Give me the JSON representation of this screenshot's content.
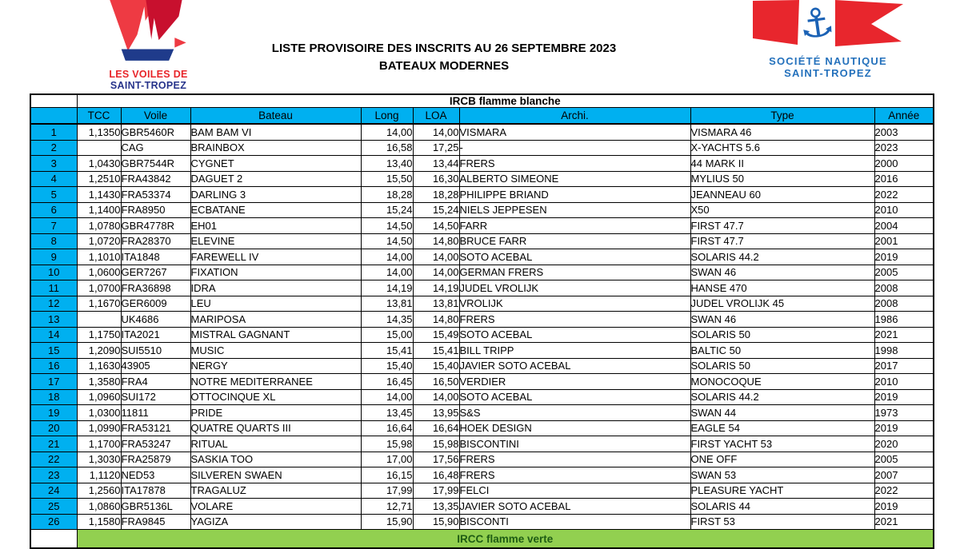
{
  "header": {
    "title_line1": "LISTE PROVISOIRE DES INSCRITS AU 26 SEPTEMBRE 2023",
    "title_line2": "BATEAUX MODERNES",
    "left_logo": {
      "line1": "LES VOILES DE",
      "line2": "SAINT-TROPEZ"
    },
    "right_logo": {
      "line1": "SOCIÉTÉ NAUTIQUE",
      "line2": "SAINT-TROPEZ"
    }
  },
  "colors": {
    "header_blue": "#00B0F0",
    "section_green": "#92D050",
    "logo_red": "#EE3A43",
    "logo_dark_red": "#C8102E",
    "logo_navy": "#1F3B8B",
    "logo_blue_text": "#2471BC",
    "green_text": "#1E5C14"
  },
  "table": {
    "section_title": "IRCB flamme blanche",
    "footer_section_title": "IRCC flamme verte",
    "columns": [
      "TCC",
      "Voile",
      "Bateau",
      "Long",
      "LOA",
      "Archi.",
      "Type",
      "Année"
    ],
    "rows": [
      {
        "num": "1",
        "tcc": "1,1350",
        "voile": "GBR5460R",
        "bateau": "BAM BAM VI",
        "long": "14,00",
        "loa": "14,00",
        "archi": "VISMARA",
        "type": "VISMARA 46",
        "annee": "2003"
      },
      {
        "num": "2",
        "tcc": "",
        "voile": "CAG",
        "bateau": "BRAINBOX",
        "long": "16,58",
        "loa": "17,25",
        "archi": "-",
        "type": "X-YACHTS 5.6",
        "annee": "2023"
      },
      {
        "num": "3",
        "tcc": "1,0430",
        "voile": "GBR7544R",
        "bateau": "CYGNET",
        "long": "13,40",
        "loa": "13,44",
        "archi": "FRERS",
        "type": "44 MARK II",
        "annee": "2000"
      },
      {
        "num": "4",
        "tcc": "1,2510",
        "voile": "FRA43842",
        "bateau": "DAGUET 2",
        "long": "15,50",
        "loa": "16,30",
        "archi": "ALBERTO SIMEONE",
        "type": "MYLIUS 50",
        "annee": "2016"
      },
      {
        "num": "5",
        "tcc": "1,1430",
        "voile": "FRA53374",
        "bateau": "DARLING 3",
        "long": "18,28",
        "loa": "18,28",
        "archi": "PHILIPPE BRIAND",
        "type": "JEANNEAU 60",
        "annee": "2022"
      },
      {
        "num": "6",
        "tcc": "1,1400",
        "voile": "FRA8950",
        "bateau": "ECBATANE",
        "long": "15,24",
        "loa": "15,24",
        "archi": "NIELS JEPPESEN",
        "type": "X50",
        "annee": "2010"
      },
      {
        "num": "7",
        "tcc": "1,0780",
        "voile": "GBR4778R",
        "bateau": "EH01",
        "long": "14,50",
        "loa": "14,50",
        "archi": "FARR",
        "type": "FIRST 47.7",
        "annee": "2004"
      },
      {
        "num": "8",
        "tcc": "1,0720",
        "voile": "FRA28370",
        "bateau": "ELEVINE",
        "long": "14,50",
        "loa": "14,80",
        "archi": "BRUCE FARR",
        "type": "FIRST 47.7",
        "annee": "2001"
      },
      {
        "num": "9",
        "tcc": "1,1010",
        "voile": "ITA1848",
        "bateau": "FAREWELL IV",
        "long": "14,00",
        "loa": "14,00",
        "archi": "SOTO ACEBAL",
        "type": "SOLARIS 44.2",
        "annee": "2019"
      },
      {
        "num": "10",
        "tcc": "1,0600",
        "voile": "GER7267",
        "bateau": "FIXATION",
        "long": "14,00",
        "loa": "14,00",
        "archi": "GERMAN FRERS",
        "type": "SWAN 46",
        "annee": "2005"
      },
      {
        "num": "11",
        "tcc": "1,0700",
        "voile": "FRA36898",
        "bateau": "IDRA",
        "long": "14,19",
        "loa": "14,19",
        "archi": "JUDEL VROLIJK",
        "type": "HANSE 470",
        "annee": "2008"
      },
      {
        "num": "12",
        "tcc": "1,1670",
        "voile": "GER6009",
        "bateau": "LEU",
        "long": "13,81",
        "loa": "13,81",
        "archi": "VROLIJK",
        "type": "JUDEL VROLIJK 45",
        "annee": "2008"
      },
      {
        "num": "13",
        "tcc": "",
        "voile": "UK4686",
        "bateau": "MARIPOSA",
        "long": "14,35",
        "loa": "14,80",
        "archi": "FRERS",
        "type": "SWAN 46",
        "annee": "1986"
      },
      {
        "num": "14",
        "tcc": "1,1750",
        "voile": "ITA2021",
        "bateau": "MISTRAL GAGNANT",
        "long": "15,00",
        "loa": "15,49",
        "archi": "SOTO ACEBAL",
        "type": "SOLARIS 50",
        "annee": "2021"
      },
      {
        "num": "15",
        "tcc": "1,2090",
        "voile": "SUI5510",
        "bateau": "MUSIC",
        "long": "15,41",
        "loa": "15,41",
        "archi": "BILL TRIPP",
        "type": "BALTIC 50",
        "annee": "1998"
      },
      {
        "num": "16",
        "tcc": "1,1630",
        "voile": "43905",
        "bateau": "NERGY",
        "long": "15,40",
        "loa": "15,40",
        "archi": "JAVIER SOTO ACEBAL",
        "type": "SOLARIS 50",
        "annee": "2017"
      },
      {
        "num": "17",
        "tcc": "1,3580",
        "voile": "FRA4",
        "bateau": "NOTRE MEDITERRANEE",
        "long": "16,45",
        "loa": "16,50",
        "archi": "VERDIER",
        "type": "MONOCOQUE",
        "annee": "2010"
      },
      {
        "num": "18",
        "tcc": "1,0960",
        "voile": "SUI172",
        "bateau": "OTTOCINQUE XL",
        "long": "14,00",
        "loa": "14,00",
        "archi": "SOTO ACEBAL",
        "type": "SOLARIS 44.2",
        "annee": "2019"
      },
      {
        "num": "19",
        "tcc": "1,0300",
        "voile": "11811",
        "bateau": "PRIDE",
        "long": "13,45",
        "loa": "13,95",
        "archi": "S&S",
        "type": "SWAN 44",
        "annee": "1973"
      },
      {
        "num": "20",
        "tcc": "1,0990",
        "voile": "FRA53121",
        "bateau": "QUATRE QUARTS III",
        "long": "16,64",
        "loa": "16,64",
        "archi": "HOEK DESIGN",
        "type": "EAGLE 54",
        "annee": "2019"
      },
      {
        "num": "21",
        "tcc": "1,1700",
        "voile": "FRA53247",
        "bateau": "RITUAL",
        "long": "15,98",
        "loa": "15,98",
        "archi": "BISCONTINI",
        "type": "FIRST YACHT 53",
        "annee": "2020"
      },
      {
        "num": "22",
        "tcc": "1,3030",
        "voile": "FRA25879",
        "bateau": "SASKIA TOO",
        "long": "17,00",
        "loa": "17,56",
        "archi": "FRERS",
        "type": "ONE OFF",
        "annee": "2005"
      },
      {
        "num": "23",
        "tcc": "1,1120",
        "voile": "NED53",
        "bateau": "SILVEREN SWAEN",
        "long": "16,15",
        "loa": "16,48",
        "archi": "FRERS",
        "type": "SWAN 53",
        "annee": "2007"
      },
      {
        "num": "24",
        "tcc": "1,2560",
        "voile": "ITA17878",
        "bateau": "TRAGALUZ",
        "long": "17,99",
        "loa": "17,99",
        "archi": "FELCI",
        "type": "PLEASURE YACHT",
        "annee": "2022"
      },
      {
        "num": "25",
        "tcc": "1,0860",
        "voile": "GBR5136L",
        "bateau": "VOLARE",
        "long": "12,71",
        "loa": "13,35",
        "archi": "JAVIER SOTO ACEBAL",
        "type": "SOLARIS 44",
        "annee": "2019"
      },
      {
        "num": "26",
        "tcc": "1,1580",
        "voile": "FRA9845",
        "bateau": "YAGIZA",
        "long": "15,90",
        "loa": "15,90",
        "archi": "BISCONTI",
        "type": "FIRST 53",
        "annee": "2021"
      }
    ]
  }
}
